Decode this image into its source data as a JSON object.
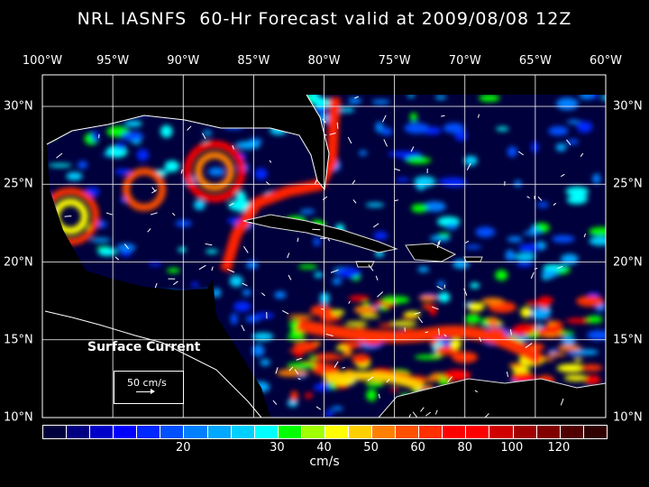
{
  "title": "NRL IASNFS  60-Hr Forecast valid at 2009/08/08 12Z",
  "longitude_labels": [
    "100°W",
    "95°W",
    "90°W",
    "85°W",
    "80°W",
    "75°W",
    "70°W",
    "65°W",
    "60°W"
  ],
  "latitude_labels": [
    "30°N",
    "25°N",
    "20°N",
    "15°N",
    "10°N"
  ],
  "legend": {
    "title": "Surface Current",
    "reference_vector": "50 cm/s"
  },
  "colorbar": {
    "units": "cm/s",
    "colors": [
      "#00003c",
      "#000080",
      "#0000c8",
      "#0000ff",
      "#0028ff",
      "#0050ff",
      "#0080ff",
      "#00a8ff",
      "#00d0ff",
      "#00ffff",
      "#00ff00",
      "#a0ff00",
      "#ffff00",
      "#ffd000",
      "#ff8000",
      "#ff5000",
      "#ff3000",
      "#ff0000",
      "#ff0000",
      "#d00000",
      "#a00000",
      "#800000",
      "#500000",
      "#300000"
    ],
    "ticks": [
      {
        "label": "20",
        "after_box": 6
      },
      {
        "label": "30",
        "after_box": 10
      },
      {
        "label": "40",
        "after_box": 12
      },
      {
        "label": "50",
        "after_box": 14
      },
      {
        "label": "60",
        "after_box": 16
      },
      {
        "label": "80",
        "after_box": 18
      },
      {
        "label": "100",
        "after_box": 20
      },
      {
        "label": "120",
        "after_box": 22
      }
    ]
  }
}
